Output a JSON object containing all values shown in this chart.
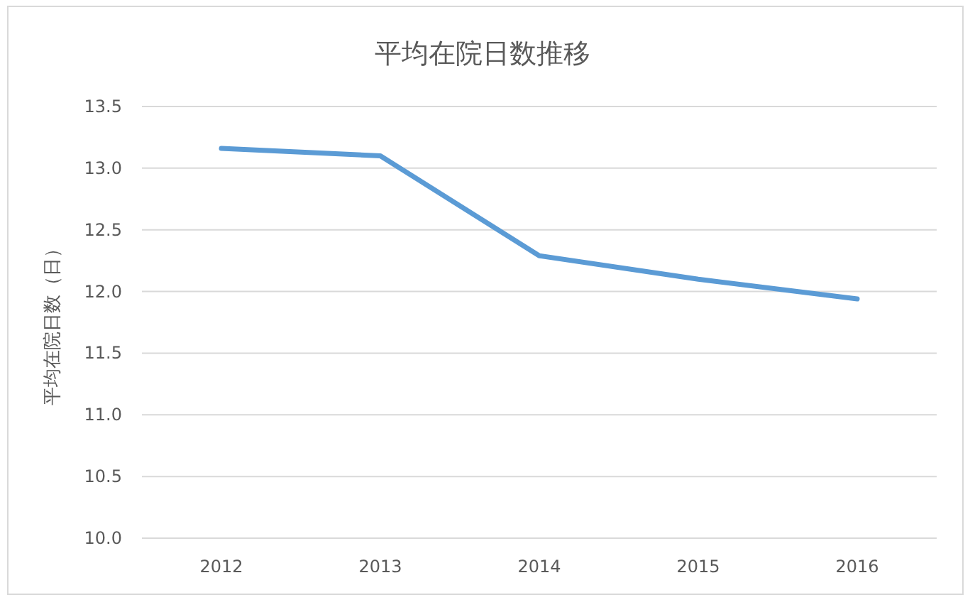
{
  "chart_data": {
    "type": "line",
    "title": "平均在院日数推移",
    "ylabel": "平均在院日数（日）",
    "categories": [
      "2012",
      "2013",
      "2014",
      "2015",
      "2016"
    ],
    "series": [
      {
        "color": "#5b9bd5",
        "values": [
          13.16,
          13.1,
          12.29,
          12.1,
          11.94
        ]
      }
    ],
    "ylim": [
      10,
      13.5
    ],
    "yticks": [
      {
        "value": 10,
        "label": "10.0"
      },
      {
        "value": 10.5,
        "label": "10.5"
      },
      {
        "value": 11,
        "label": "11.0"
      },
      {
        "value": 11.5,
        "label": "11.5"
      },
      {
        "value": 12,
        "label": "12.0"
      },
      {
        "value": 12.5,
        "label": "12.5"
      },
      {
        "value": 13,
        "label": "13.0"
      },
      {
        "value": 13.5,
        "label": "13.5"
      }
    ],
    "grid": "y"
  }
}
